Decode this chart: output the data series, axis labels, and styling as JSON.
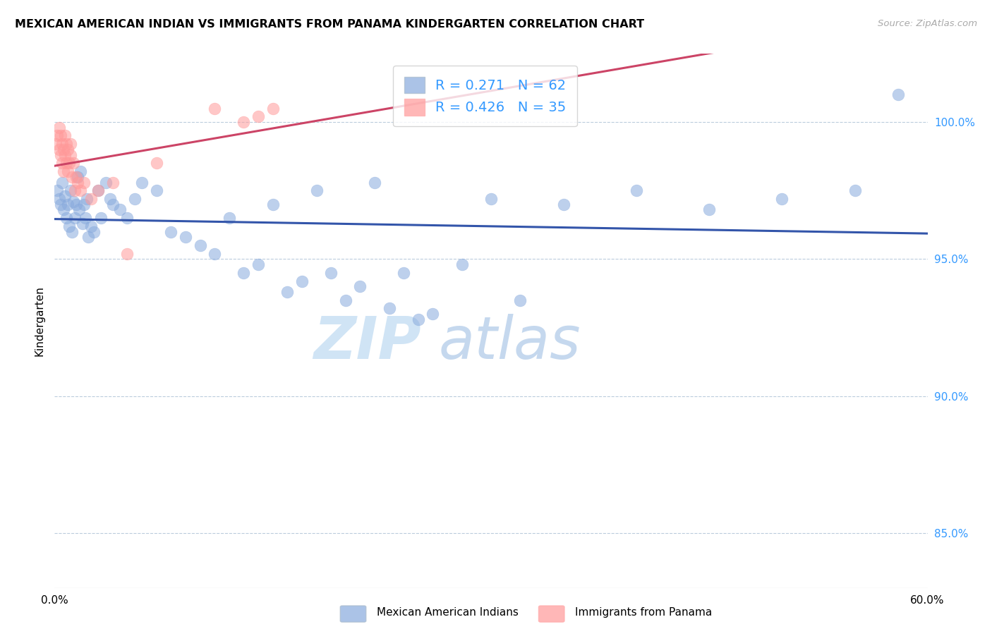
{
  "title": "MEXICAN AMERICAN INDIAN VS IMMIGRANTS FROM PANAMA KINDERGARTEN CORRELATION CHART",
  "source": "Source: ZipAtlas.com",
  "ylabel": "Kindergarten",
  "ytick_labels": [
    "85.0%",
    "90.0%",
    "95.0%",
    "100.0%"
  ],
  "ytick_values": [
    85.0,
    90.0,
    95.0,
    100.0
  ],
  "xlim": [
    0.0,
    60.0
  ],
  "ylim": [
    83.0,
    102.5
  ],
  "legend_blue_r": "0.271",
  "legend_blue_n": "62",
  "legend_pink_r": "0.426",
  "legend_pink_n": "35",
  "legend_blue_label": "Mexican American Indians",
  "legend_pink_label": "Immigrants from Panama",
  "blue_color": "#88AADD",
  "pink_color": "#FF9999",
  "trend_blue_color": "#3355AA",
  "trend_pink_color": "#CC4466",
  "watermark_zip": "ZIP",
  "watermark_atlas": "atlas",
  "blue_x": [
    0.2,
    0.3,
    0.4,
    0.5,
    0.6,
    0.7,
    0.8,
    0.9,
    1.0,
    1.1,
    1.2,
    1.3,
    1.4,
    1.5,
    1.6,
    1.7,
    1.8,
    1.9,
    2.0,
    2.1,
    2.2,
    2.3,
    2.5,
    2.7,
    3.0,
    3.2,
    3.5,
    3.8,
    4.0,
    4.5,
    5.0,
    5.5,
    6.0,
    7.0,
    8.0,
    9.0,
    10.0,
    11.0,
    12.0,
    13.0,
    14.0,
    15.0,
    16.0,
    17.0,
    18.0,
    19.0,
    20.0,
    21.0,
    22.0,
    23.0,
    24.0,
    25.0,
    26.0,
    28.0,
    30.0,
    32.0,
    35.0,
    40.0,
    45.0,
    50.0,
    55.0,
    58.0
  ],
  "blue_y": [
    97.5,
    97.2,
    97.0,
    97.8,
    96.8,
    97.3,
    96.5,
    97.0,
    96.2,
    97.5,
    96.0,
    97.1,
    96.5,
    97.0,
    98.0,
    96.8,
    98.2,
    96.3,
    97.0,
    96.5,
    97.2,
    95.8,
    96.2,
    96.0,
    97.5,
    96.5,
    97.8,
    97.2,
    97.0,
    96.8,
    96.5,
    97.2,
    97.8,
    97.5,
    96.0,
    95.8,
    95.5,
    95.2,
    96.5,
    94.5,
    94.8,
    97.0,
    93.8,
    94.2,
    97.5,
    94.5,
    93.5,
    94.0,
    97.8,
    93.2,
    94.5,
    92.8,
    93.0,
    94.8,
    97.2,
    93.5,
    97.0,
    97.5,
    96.8,
    97.2,
    97.5,
    101.0
  ],
  "pink_x": [
    0.1,
    0.2,
    0.3,
    0.3,
    0.4,
    0.4,
    0.5,
    0.5,
    0.6,
    0.6,
    0.7,
    0.7,
    0.8,
    0.8,
    0.9,
    0.9,
    1.0,
    1.1,
    1.1,
    1.2,
    1.3,
    1.4,
    1.5,
    1.6,
    1.8,
    2.0,
    2.5,
    3.0,
    4.0,
    5.0,
    7.0,
    11.0,
    13.0,
    14.0,
    15.0
  ],
  "pink_y": [
    99.2,
    99.5,
    99.0,
    99.8,
    98.8,
    99.5,
    98.5,
    99.2,
    98.2,
    99.0,
    98.8,
    99.5,
    98.5,
    99.2,
    98.2,
    99.0,
    98.5,
    98.8,
    99.2,
    98.0,
    98.5,
    97.5,
    98.0,
    97.8,
    97.5,
    97.8,
    97.2,
    97.5,
    97.8,
    95.2,
    98.5,
    100.5,
    100.0,
    100.2,
    100.5
  ]
}
